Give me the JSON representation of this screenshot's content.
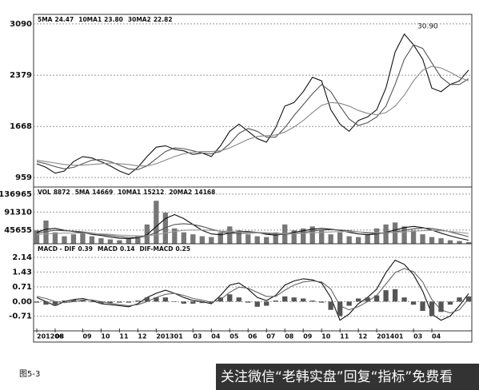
{
  "chart_data": [
    {
      "type": "line",
      "annotation": "30.90",
      "xlim": [
        0,
        47
      ],
      "ylim": [
        850,
        3200
      ],
      "yticks": [
        3090,
        2379,
        1668,
        959
      ],
      "grid": true,
      "series": [
        {
          "name": "5MA",
          "label": "24.47",
          "color": "#111111",
          "values": [
            1150,
            1100,
            1020,
            1050,
            1180,
            1250,
            1230,
            1180,
            1120,
            1050,
            1000,
            1100,
            1250,
            1380,
            1400,
            1350,
            1330,
            1280,
            1300,
            1250,
            1400,
            1600,
            1700,
            1600,
            1500,
            1450,
            1650,
            1950,
            2000,
            2150,
            2350,
            2300,
            1900,
            1700,
            1600,
            1750,
            1800,
            1900,
            2200,
            2700,
            2950,
            2800,
            2600,
            2200,
            2150,
            2250,
            2300,
            2450
          ]
        },
        {
          "name": "10MA1",
          "label": "23.80",
          "color": "#555555",
          "values": [
            1180,
            1150,
            1110,
            1080,
            1100,
            1150,
            1200,
            1210,
            1180,
            1130,
            1080,
            1070,
            1120,
            1220,
            1320,
            1370,
            1360,
            1330,
            1300,
            1290,
            1320,
            1430,
            1570,
            1640,
            1600,
            1520,
            1520,
            1650,
            1820,
            1970,
            2120,
            2250,
            2150,
            1950,
            1770,
            1680,
            1720,
            1800,
            1950,
            2250,
            2600,
            2800,
            2750,
            2550,
            2350,
            2250,
            2250,
            2330
          ]
        },
        {
          "name": "30MA2",
          "label": "22.82",
          "color": "#888888",
          "values": [
            1200,
            1180,
            1160,
            1140,
            1130,
            1130,
            1140,
            1150,
            1160,
            1150,
            1140,
            1120,
            1120,
            1150,
            1200,
            1250,
            1290,
            1310,
            1320,
            1320,
            1330,
            1370,
            1430,
            1490,
            1530,
            1540,
            1550,
            1590,
            1660,
            1750,
            1860,
            1960,
            2000,
            1990,
            1950,
            1890,
            1850,
            1830,
            1860,
            1950,
            2100,
            2300,
            2450,
            2500,
            2480,
            2420,
            2350,
            2300
          ]
        }
      ]
    },
    {
      "type": "bar",
      "xlim": [
        0,
        47
      ],
      "ylim": [
        11000,
        151000
      ],
      "yticks": [
        136965,
        91310,
        45655
      ],
      "grid": true,
      "series": [
        {
          "name": "VOL",
          "label": "8872",
          "style": "bar",
          "color": "#777777",
          "values": [
            45000,
            70000,
            40000,
            30000,
            35000,
            40000,
            30000,
            25000,
            22000,
            20000,
            25000,
            30000,
            60000,
            120000,
            90000,
            50000,
            40000,
            35000,
            30000,
            28000,
            40000,
            55000,
            45000,
            35000,
            30000,
            28000,
            40000,
            60000,
            45000,
            50000,
            55000,
            45000,
            35000,
            40000,
            30000,
            28000,
            35000,
            50000,
            60000,
            65000,
            55000,
            45000,
            35000,
            28000,
            25000,
            20000,
            18000,
            15000
          ]
        },
        {
          "name": "5MA",
          "label": "14669",
          "style": "line",
          "color": "#111111",
          "values": [
            40000,
            48000,
            50000,
            45000,
            42000,
            39000,
            35000,
            32000,
            28000,
            25000,
            24000,
            26000,
            34000,
            55000,
            75000,
            85000,
            75000,
            60000,
            45000,
            36000,
            34000,
            38000,
            42000,
            42000,
            40000,
            35000,
            33000,
            36000,
            40000,
            44000,
            48000,
            50000,
            48000,
            45000,
            40000,
            36000,
            34000,
            36000,
            40000,
            46000,
            52000,
            55000,
            52000,
            46000,
            38000,
            31000,
            25000,
            20000
          ]
        },
        {
          "name": "10MA1",
          "label": "15212",
          "style": "line",
          "color": "#555555",
          "values": [
            38000,
            42000,
            45000,
            44000,
            43000,
            41000,
            38000,
            35000,
            32000,
            29000,
            27000,
            27000,
            30000,
            40000,
            52000,
            60000,
            62000,
            60000,
            55000,
            48000,
            42000,
            38000,
            37000,
            38000,
            39000,
            37000,
            35000,
            35000,
            37000,
            40000,
            43000,
            46000,
            47000,
            46000,
            44000,
            41000,
            38000,
            37000,
            38000,
            41000,
            45000,
            49000,
            51000,
            50000,
            46000,
            41000,
            35000,
            29000
          ]
        },
        {
          "name": "20MA2",
          "label": "14168",
          "style": "line",
          "color": "#999999",
          "values": [
            35000,
            36000,
            37000,
            38000,
            38000,
            38000,
            37000,
            36000,
            35000,
            33000,
            32000,
            31000,
            31000,
            34000,
            38000,
            42000,
            45000,
            46000,
            46000,
            45000,
            43000,
            42000,
            41000,
            40000,
            40000,
            39000,
            38000,
            37000,
            37000,
            38000,
            39000,
            40000,
            41000,
            42000,
            42000,
            41000,
            40000,
            39000,
            39000,
            40000,
            41000,
            43000,
            44000,
            45000,
            44000,
            42000,
            40000,
            37000
          ]
        }
      ]
    },
    {
      "type": "line",
      "xlim": [
        0,
        47
      ],
      "ylim": [
        -1.3,
        2.72
      ],
      "yticks": [
        2.14,
        1.43,
        0.71,
        {
          "value": 0,
          "label": "0.00"
        },
        -0.71
      ],
      "grid": true,
      "xticks": [
        {
          "value": 0,
          "label": "201206"
        },
        {
          "value": 2,
          "label": "08"
        },
        {
          "value": 5,
          "label": "09"
        },
        {
          "value": 7,
          "label": "10"
        },
        {
          "value": 9,
          "label": "11"
        },
        {
          "value": 11,
          "label": "12"
        },
        {
          "value": 13,
          "label": "201301"
        },
        {
          "value": 17,
          "label": "03"
        },
        {
          "value": 19,
          "label": "04"
        },
        {
          "value": 21,
          "label": "05"
        },
        {
          "value": 23,
          "label": "06"
        },
        {
          "value": 25,
          "label": "07"
        },
        {
          "value": 27,
          "label": "08"
        },
        {
          "value": 29,
          "label": "09"
        },
        {
          "value": 31,
          "label": "10"
        },
        {
          "value": 33,
          "label": "11"
        },
        {
          "value": 35,
          "label": "12"
        },
        {
          "value": 37,
          "label": "201401"
        },
        {
          "value": 41,
          "label": "03"
        },
        {
          "value": 43,
          "label": "04"
        }
      ],
      "series": [
        {
          "name": "MACD - DIF",
          "label": "0.39",
          "style": "line",
          "color": "#111111",
          "values": [
            0.2,
            0,
            -0.2,
            0,
            0.1,
            0.15,
            0.05,
            -0.1,
            -0.15,
            -0.2,
            -0.25,
            -0.1,
            0.2,
            0.4,
            0.55,
            0.4,
            0.2,
            0.05,
            0,
            -0.1,
            0.3,
            0.8,
            0.9,
            0.6,
            0.2,
            0.05,
            0.3,
            0.8,
            1.0,
            1.1,
            1.05,
            0.9,
            0.2,
            -0.9,
            -0.6,
            -0.1,
            0.2,
            0.6,
            1.4,
            2.0,
            1.8,
            1.3,
            0.5,
            -0.6,
            -0.9,
            -0.7,
            -0.2,
            0.39
          ]
        },
        {
          "name": "MACD",
          "label": "0.14",
          "style": "line",
          "color": "#666666",
          "values": [
            0.25,
            0.15,
            0,
            -0.05,
            0,
            0.08,
            0.08,
            0,
            -0.08,
            -0.15,
            -0.2,
            -0.15,
            0,
            0.2,
            0.35,
            0.4,
            0.3,
            0.15,
            0.07,
            -0.03,
            0.1,
            0.45,
            0.7,
            0.65,
            0.45,
            0.25,
            0.25,
            0.55,
            0.8,
            0.95,
            1.0,
            0.95,
            0.6,
            -0.2,
            -0.4,
            -0.25,
            0,
            0.3,
            0.85,
            1.4,
            1.6,
            1.45,
            0.95,
            0.1,
            -0.4,
            -0.55,
            -0.4,
            0.14
          ]
        },
        {
          "name": "DIF-MACD",
          "label": "0.25",
          "style": "bar",
          "color": "#555555",
          "values": [
            -0.05,
            -0.15,
            -0.2,
            0.05,
            0.1,
            0.07,
            -0.03,
            -0.1,
            -0.07,
            -0.05,
            -0.05,
            0.05,
            0.2,
            0.2,
            0.2,
            0,
            -0.1,
            -0.1,
            -0.07,
            -0.07,
            0.2,
            0.35,
            0.2,
            -0.05,
            -0.25,
            -0.2,
            0.05,
            0.25,
            0.2,
            0.15,
            0.05,
            -0.05,
            -0.4,
            -0.7,
            -0.2,
            0.15,
            0.2,
            0.3,
            0.55,
            0.6,
            0.2,
            -0.15,
            -0.45,
            -0.7,
            -0.5,
            -0.15,
            0.2,
            0.25
          ]
        }
      ]
    }
  ],
  "figure_label": "图5-3",
  "watermark": "关注微信“老韩实盘”回复“指标”免费看"
}
